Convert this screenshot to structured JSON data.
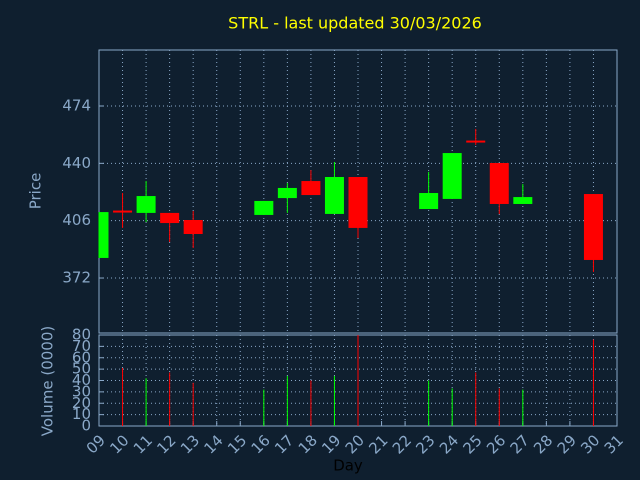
{
  "chart_data": [
    {
      "type": "candlestick",
      "title": "STRL - last updated 30/03/2026",
      "ylabel": "Price",
      "x": [
        9,
        10,
        11,
        12,
        13,
        16,
        17,
        18,
        19,
        20,
        23,
        24,
        25,
        26,
        27,
        30
      ],
      "open": [
        383.9,
        412,
        410.6,
        410.6,
        406.4,
        409.4,
        419.4,
        429.5,
        410,
        431.9,
        412.9,
        418.9,
        453.5,
        440.2,
        415.9,
        421.8
      ],
      "high": [
        411.1,
        422.4,
        429.5,
        410.6,
        411.7,
        417.7,
        428.3,
        436,
        440.8,
        431.9,
        434.9,
        446.1,
        460.4,
        440.2,
        427.7,
        421.8
      ],
      "low": [
        383.9,
        401.7,
        405.2,
        393.4,
        389.8,
        409.4,
        410.6,
        421.2,
        410,
        395.7,
        412.9,
        418.9,
        450.9,
        410,
        415.9,
        375.6
      ],
      "close": [
        411.1,
        411,
        420.6,
        404.6,
        398.1,
        417.7,
        425.4,
        421.2,
        431.9,
        401.7,
        422.4,
        446.1,
        453,
        415.9,
        420,
        382.7
      ],
      "up_color": "#00ff00",
      "down_color": "#ff0000",
      "ylim": [
        339.4,
        507.2
      ],
      "yticks": [
        372,
        406,
        440,
        474
      ],
      "grid": true
    },
    {
      "type": "bar",
      "xlabel": "Day",
      "ylabel": "Volume (0000)",
      "x": [
        10,
        11,
        12,
        13,
        16,
        17,
        18,
        19,
        20,
        23,
        24,
        25,
        26,
        27,
        30
      ],
      "values": [
        51,
        42,
        47,
        38,
        32,
        44,
        40,
        44,
        80,
        40,
        33,
        47,
        33,
        32,
        76
      ],
      "colors": [
        "#ff0000",
        "#00ff00",
        "#ff0000",
        "#ff0000",
        "#00ff00",
        "#00ff00",
        "#ff0000",
        "#00ff00",
        "#ff0000",
        "#00ff00",
        "#00ff00",
        "#ff0000",
        "#ff0000",
        "#00ff00",
        "#ff0000"
      ],
      "xlim": [
        9,
        31
      ],
      "xticks": [
        {
          "value": 9,
          "label": "09"
        },
        10,
        11,
        12,
        13,
        14,
        15,
        16,
        17,
        18,
        19,
        20,
        21,
        22,
        23,
        24,
        25,
        26,
        27,
        28,
        29,
        30,
        31
      ],
      "ylim": [
        0,
        80
      ],
      "yticks": [
        0,
        10,
        20,
        30,
        40,
        50,
        60,
        70,
        80
      ],
      "grid": true
    }
  ]
}
